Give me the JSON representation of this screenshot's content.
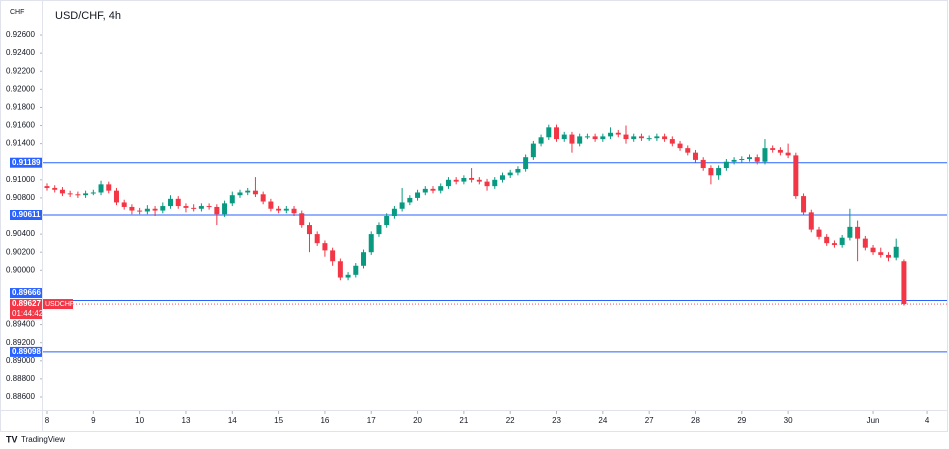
{
  "header": {
    "currency": "CHF",
    "title": "USD/CHF, 4h"
  },
  "chart_data": {
    "type": "candlestick",
    "categories": [
      "8",
      null,
      null,
      null,
      null,
      null,
      "9",
      null,
      null,
      null,
      null,
      null,
      "10",
      null,
      null,
      null,
      null,
      null,
      "13",
      null,
      null,
      null,
      null,
      null,
      "14",
      null,
      null,
      null,
      null,
      null,
      "15",
      null,
      null,
      null,
      null,
      null,
      "16",
      null,
      null,
      null,
      null,
      null,
      "17",
      null,
      null,
      null,
      null,
      null,
      "20",
      null,
      null,
      null,
      null,
      null,
      "21",
      null,
      null,
      null,
      null,
      null,
      "22",
      null,
      null,
      null,
      null,
      null,
      "23",
      null,
      null,
      null,
      null,
      null,
      "24",
      null,
      null,
      null,
      null,
      null,
      "27",
      null,
      null,
      null,
      null,
      null,
      "28",
      null,
      null,
      null,
      null,
      null,
      "29",
      null,
      null,
      null,
      null,
      null,
      "30",
      null,
      null,
      null,
      null,
      null,
      null,
      null,
      null,
      null,
      null,
      "Jun",
      null,
      null,
      null,
      null,
      null,
      null,
      "4"
    ],
    "open": [
      0.9093,
      0.9091,
      0.9089,
      0.9085,
      0.9084,
      0.9083,
      0.9085,
      0.9086,
      0.9095,
      0.9088,
      0.9075,
      0.907,
      0.9066,
      0.9065,
      0.9068,
      0.9066,
      0.9071,
      0.9079,
      0.9071,
      0.9069,
      0.9068,
      0.9071,
      0.907,
      0.9062,
      0.9074,
      0.9083,
      0.9086,
      0.9088,
      0.9084,
      0.9076,
      0.9068,
      0.9066,
      0.9068,
      0.9063,
      0.905,
      0.904,
      0.903,
      0.9022,
      0.901,
      0.8992,
      0.8995,
      0.9005,
      0.902,
      0.904,
      0.905,
      0.906,
      0.9068,
      0.9075,
      0.908,
      0.9086,
      0.909,
      0.9088,
      0.9093,
      0.91,
      0.9098,
      0.9102,
      0.91,
      0.9098,
      0.9093,
      0.91,
      0.9105,
      0.9108,
      0.9112,
      0.9125,
      0.914,
      0.9147,
      0.9158,
      0.9145,
      0.915,
      0.914,
      0.9148,
      0.9148,
      0.9145,
      0.9148,
      0.9152,
      0.915,
      0.9145,
      0.9148,
      0.9146,
      0.9146,
      0.9148,
      0.9145,
      0.914,
      0.9135,
      0.913,
      0.9122,
      0.9113,
      0.9105,
      0.9113,
      0.912,
      0.9122,
      0.9123,
      0.9125,
      0.912,
      0.9135,
      0.9133,
      0.913,
      0.9127,
      0.9082,
      0.9064,
      0.9045,
      0.9037,
      0.903,
      0.9028,
      0.9036,
      0.9048,
      0.9035,
      0.9025,
      0.902,
      0.9017,
      0.9014,
      0.901,
      null,
      null,
      null
    ],
    "high": [
      0.9096,
      0.9094,
      0.9092,
      0.9088,
      0.9087,
      0.9088,
      0.9089,
      0.9099,
      0.9098,
      0.9091,
      0.9078,
      0.9073,
      0.9069,
      0.9072,
      0.9071,
      0.9075,
      0.9083,
      0.9082,
      0.9074,
      0.9073,
      0.9074,
      0.9074,
      0.9073,
      0.9077,
      0.9087,
      0.9089,
      0.9091,
      0.9103,
      0.9087,
      0.9079,
      0.9071,
      0.9071,
      0.9071,
      0.9066,
      0.9053,
      0.9043,
      0.9033,
      0.9025,
      0.9013,
      0.8998,
      0.9008,
      0.9023,
      0.9043,
      0.9053,
      0.9063,
      0.9071,
      0.9091,
      0.9083,
      0.9089,
      0.9093,
      0.9093,
      0.9096,
      0.9103,
      0.9103,
      0.9105,
      0.9113,
      0.9103,
      0.9101,
      0.9103,
      0.9108,
      0.9111,
      0.9115,
      0.9128,
      0.9143,
      0.915,
      0.9161,
      0.9161,
      0.9153,
      0.9153,
      0.9151,
      0.9151,
      0.9151,
      0.9151,
      0.9158,
      0.9155,
      0.916,
      0.9151,
      0.9151,
      0.9149,
      0.9151,
      0.9151,
      0.9148,
      0.9143,
      0.9138,
      0.9133,
      0.9125,
      0.9116,
      0.9116,
      0.9123,
      0.9125,
      0.9126,
      0.9128,
      0.9128,
      0.9145,
      0.9138,
      0.9136,
      0.914,
      0.913,
      0.9085,
      0.9067,
      0.9048,
      0.904,
      0.9033,
      0.9039,
      0.9068,
      0.9055,
      0.9038,
      0.9028,
      0.9025,
      0.902,
      0.9035,
      0.9012,
      null,
      null,
      null
    ],
    "low": [
      0.9088,
      0.9086,
      0.9082,
      0.9081,
      0.908,
      0.908,
      0.9083,
      0.9083,
      0.9085,
      0.9072,
      0.9067,
      0.9062,
      0.9062,
      0.9062,
      0.906,
      0.9063,
      0.9068,
      0.9068,
      0.9064,
      0.9065,
      0.9065,
      0.9067,
      0.905,
      0.9059,
      0.9071,
      0.908,
      0.9083,
      0.9081,
      0.9073,
      0.9065,
      0.9063,
      0.9063,
      0.906,
      0.9047,
      0.902,
      0.9027,
      0.9015,
      0.9005,
      0.8989,
      0.8989,
      0.8992,
      0.9002,
      0.9017,
      0.9037,
      0.9047,
      0.9057,
      0.9065,
      0.9072,
      0.9077,
      0.9083,
      0.9085,
      0.9085,
      0.909,
      0.9095,
      0.9095,
      0.9097,
      0.9095,
      0.9088,
      0.909,
      0.9097,
      0.9102,
      0.9105,
      0.9109,
      0.9122,
      0.9137,
      0.9144,
      0.9142,
      0.9142,
      0.913,
      0.9137,
      0.9145,
      0.9142,
      0.9142,
      0.9145,
      0.9147,
      0.914,
      0.9142,
      0.9143,
      0.9143,
      0.9143,
      0.9142,
      0.9137,
      0.9132,
      0.9127,
      0.9119,
      0.911,
      0.9095,
      0.91,
      0.911,
      0.9117,
      0.9119,
      0.912,
      0.9117,
      0.9117,
      0.913,
      0.9127,
      0.9124,
      0.9079,
      0.9061,
      0.9042,
      0.9034,
      0.9027,
      0.9025,
      0.9025,
      0.9033,
      0.901,
      0.9022,
      0.9017,
      0.9014,
      0.901,
      0.9011,
      0.8961,
      null,
      null,
      null
    ],
    "close": [
      0.9091,
      0.9089,
      0.9085,
      0.9084,
      0.9083,
      0.9085,
      0.9086,
      0.9095,
      0.9088,
      0.9075,
      0.907,
      0.9066,
      0.9065,
      0.9068,
      0.9066,
      0.9071,
      0.9079,
      0.9071,
      0.9069,
      0.9068,
      0.9071,
      0.907,
      0.9062,
      0.9074,
      0.9083,
      0.9086,
      0.9088,
      0.9084,
      0.9076,
      0.9068,
      0.9066,
      0.9068,
      0.9063,
      0.905,
      0.904,
      0.903,
      0.9022,
      0.901,
      0.8992,
      0.8995,
      0.9005,
      0.902,
      0.904,
      0.905,
      0.906,
      0.9068,
      0.9075,
      0.908,
      0.9086,
      0.909,
      0.9088,
      0.9093,
      0.91,
      0.9098,
      0.9102,
      0.91,
      0.9098,
      0.9093,
      0.91,
      0.9105,
      0.9108,
      0.9112,
      0.9125,
      0.914,
      0.9147,
      0.9158,
      0.9145,
      0.915,
      0.914,
      0.9148,
      0.9148,
      0.9145,
      0.9148,
      0.9152,
      0.915,
      0.9145,
      0.9148,
      0.9146,
      0.9146,
      0.9148,
      0.9145,
      0.914,
      0.9135,
      0.913,
      0.9122,
      0.9113,
      0.9105,
      0.9113,
      0.912,
      0.9122,
      0.9123,
      0.9125,
      0.912,
      0.9135,
      0.9133,
      0.913,
      0.9127,
      0.9082,
      0.9064,
      0.9045,
      0.9037,
      0.903,
      0.9028,
      0.9036,
      0.9048,
      0.9035,
      0.9025,
      0.902,
      0.9017,
      0.9014,
      0.9026,
      0.89627,
      null,
      null,
      null
    ],
    "up_color": "#089981",
    "down_color": "#f23645",
    "ylim": [
      0.88456,
      0.92932
    ],
    "yticks": [
      {
        "value": 0.926,
        "label": "0.92600"
      },
      {
        "value": 0.924,
        "label": "0.92400"
      },
      {
        "value": 0.922,
        "label": "0.92200"
      },
      {
        "value": 0.92,
        "label": "0.92000"
      },
      {
        "value": 0.918,
        "label": "0.91800"
      },
      {
        "value": 0.916,
        "label": "0.91600"
      },
      {
        "value": 0.914,
        "label": "0.91400"
      },
      {
        "value": 0.91,
        "label": "0.91000"
      },
      {
        "value": 0.908,
        "label": "0.90800"
      },
      {
        "value": 0.904,
        "label": "0.90400"
      },
      {
        "value": 0.902,
        "label": "0.90200"
      },
      {
        "value": 0.9,
        "label": "0.90000"
      },
      {
        "value": 0.894,
        "label": "0.89400"
      },
      {
        "value": 0.892,
        "label": "0.89200"
      },
      {
        "value": 0.89,
        "label": "0.89000"
      },
      {
        "value": 0.888,
        "label": "0.88800"
      },
      {
        "value": 0.886,
        "label": "0.88600"
      }
    ],
    "grid": false,
    "levels": [
      0.91189,
      0.90611,
      0.89666,
      0.89098
    ],
    "level_color": "#2962ff",
    "symbol": "USDCHF",
    "countdown": "01:44:42"
  },
  "footer": {
    "brand": "TradingView"
  }
}
